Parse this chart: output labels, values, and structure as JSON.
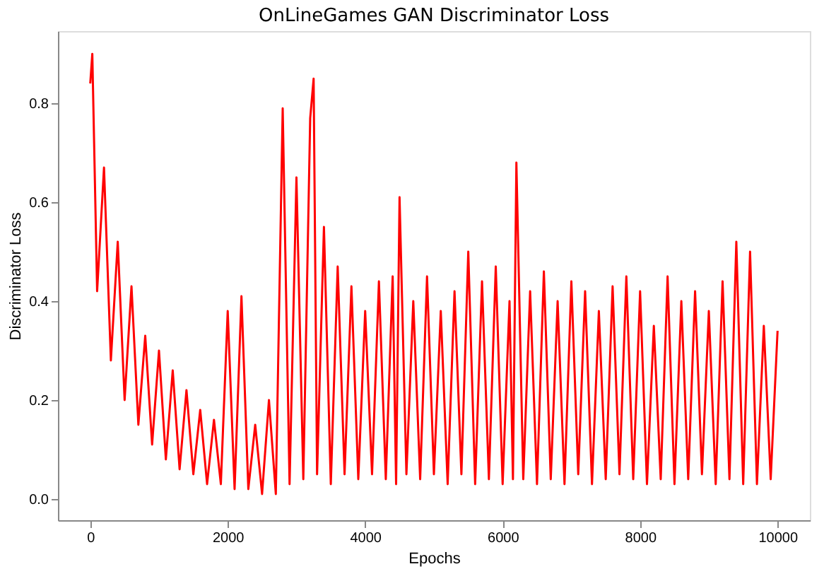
{
  "chart_data": {
    "type": "line",
    "title": "OnLineGames GAN Discriminator Loss",
    "xlabel": "Epochs",
    "ylabel": "Discriminator Loss",
    "xlim": [
      -470,
      10470
    ],
    "ylim": [
      -0.043,
      0.946
    ],
    "xticks": [
      0,
      2000,
      4000,
      6000,
      8000,
      10000
    ],
    "yticks": [
      {
        "value": 0,
        "label": "0.0"
      },
      0.2,
      0.4,
      0.6,
      0.8
    ],
    "grid": false,
    "series": [
      {
        "color": "#ff0000",
        "x": [
          0,
          30,
          100,
          200,
          300,
          400,
          500,
          600,
          700,
          800,
          900,
          1000,
          1100,
          1200,
          1300,
          1400,
          1500,
          1600,
          1700,
          1800,
          1900,
          2000,
          2100,
          2200,
          2300,
          2400,
          2500,
          2600,
          2700,
          2800,
          2900,
          3000,
          3100,
          3200,
          3250,
          3300,
          3400,
          3500,
          3600,
          3700,
          3800,
          3900,
          4000,
          4100,
          4200,
          4300,
          4400,
          4450,
          4500,
          4600,
          4700,
          4800,
          4900,
          5000,
          5100,
          5200,
          5300,
          5400,
          5500,
          5600,
          5700,
          5800,
          5900,
          6000,
          6100,
          6150,
          6200,
          6300,
          6400,
          6500,
          6600,
          6700,
          6800,
          6900,
          7000,
          7100,
          7200,
          7300,
          7400,
          7500,
          7600,
          7700,
          7800,
          7900,
          8000,
          8100,
          8200,
          8300,
          8400,
          8500,
          8600,
          8700,
          8800,
          8900,
          9000,
          9100,
          9200,
          9300,
          9400,
          9500,
          9600,
          9700,
          9800,
          9900,
          10000
        ],
        "values": [
          0.84,
          0.9,
          0.42,
          0.67,
          0.28,
          0.52,
          0.2,
          0.43,
          0.15,
          0.33,
          0.11,
          0.3,
          0.08,
          0.26,
          0.06,
          0.22,
          0.05,
          0.18,
          0.03,
          0.16,
          0.03,
          0.38,
          0.02,
          0.41,
          0.02,
          0.15,
          0.01,
          0.2,
          0.01,
          0.79,
          0.03,
          0.65,
          0.04,
          0.77,
          0.85,
          0.05,
          0.55,
          0.03,
          0.47,
          0.05,
          0.43,
          0.04,
          0.38,
          0.05,
          0.44,
          0.04,
          0.45,
          0.03,
          0.61,
          0.05,
          0.4,
          0.04,
          0.45,
          0.05,
          0.38,
          0.03,
          0.42,
          0.05,
          0.5,
          0.03,
          0.44,
          0.04,
          0.47,
          0.03,
          0.4,
          0.04,
          0.68,
          0.04,
          0.42,
          0.03,
          0.46,
          0.04,
          0.4,
          0.03,
          0.44,
          0.05,
          0.42,
          0.03,
          0.38,
          0.04,
          0.43,
          0.05,
          0.45,
          0.04,
          0.42,
          0.03,
          0.35,
          0.04,
          0.45,
          0.03,
          0.4,
          0.04,
          0.42,
          0.05,
          0.38,
          0.03,
          0.44,
          0.04,
          0.52,
          0.03,
          0.5,
          0.03,
          0.35,
          0.04,
          0.34
        ]
      }
    ]
  }
}
